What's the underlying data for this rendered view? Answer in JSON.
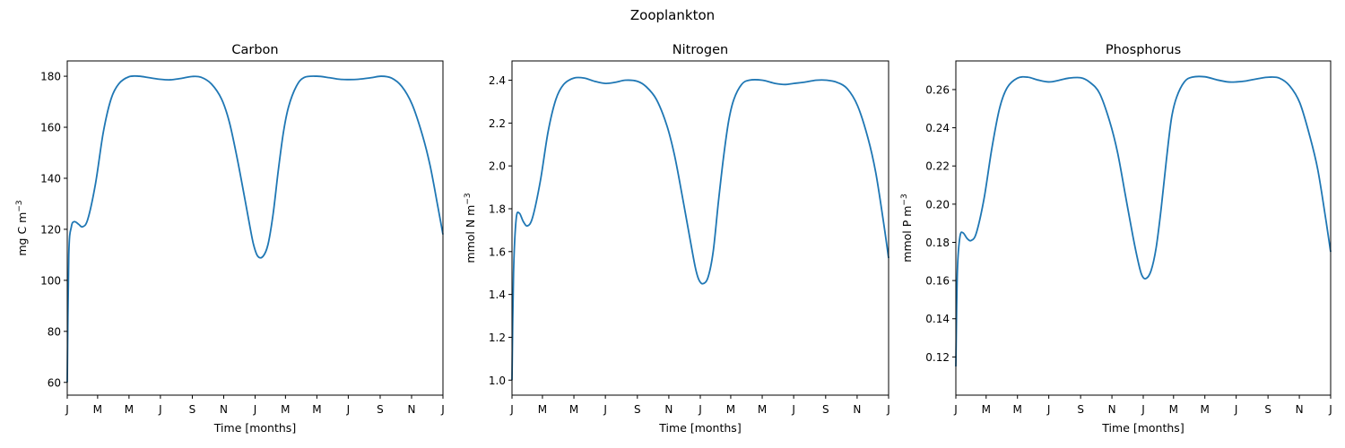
{
  "figure": {
    "suptitle": "Zooplankton"
  },
  "line_color": "#1f77b4",
  "chart_data": [
    {
      "type": "line",
      "title": "Carbon",
      "xlabel": "Time [months]",
      "ylabel": "mg C m",
      "ylabel_sup": "−3",
      "xtick_labels": [
        "J",
        "M",
        "M",
        "J",
        "S",
        "N",
        "J",
        "M",
        "M",
        "J",
        "S",
        "N",
        "J"
      ],
      "xtick_values": [
        0,
        59,
        120,
        181,
        243,
        304,
        365,
        424,
        485,
        546,
        608,
        669,
        730
      ],
      "xlim": [
        0,
        730
      ],
      "ylim": [
        55,
        186
      ],
      "yticks": [
        60,
        80,
        100,
        120,
        140,
        160,
        180
      ],
      "ytick_labels": [
        "60",
        "80",
        "100",
        "120",
        "140",
        "160",
        "180"
      ],
      "series": [
        {
          "x": [
            0,
            3,
            8,
            14,
            22,
            30,
            40,
            55,
            70,
            85,
            100,
            120,
            140,
            160,
            181,
            200,
            220,
            243,
            260,
            280,
            300,
            315,
            330,
            345,
            355,
            362,
            370,
            380,
            390,
            400,
            410,
            420,
            430,
            445,
            460,
            485,
            510,
            530,
            546,
            565,
            590,
            610,
            630,
            650,
            670,
            690,
            705,
            720,
            730
          ],
          "y": [
            60,
            110,
            121,
            123,
            122,
            121,
            124,
            138,
            158,
            171,
            177,
            179.8,
            180,
            179.4,
            178.8,
            178.6,
            179.1,
            179.9,
            179.6,
            177,
            171,
            162,
            148,
            132,
            121,
            114,
            109.5,
            109.3,
            114,
            126,
            143,
            158,
            168,
            176,
            179.5,
            180,
            179.4,
            178.8,
            178.7,
            178.8,
            179.4,
            180,
            179.3,
            176,
            169,
            157,
            145,
            129,
            118
          ]
        }
      ]
    },
    {
      "type": "line",
      "title": "Nitrogen",
      "xlabel": "Time [months]",
      "ylabel": "mmol N m",
      "ylabel_sup": "−3",
      "xtick_labels": [
        "J",
        "M",
        "M",
        "J",
        "S",
        "N",
        "J",
        "M",
        "M",
        "J",
        "S",
        "N",
        "J"
      ],
      "xtick_values": [
        0,
        59,
        120,
        181,
        243,
        304,
        365,
        424,
        485,
        546,
        608,
        669,
        730
      ],
      "xlim": [
        0,
        730
      ],
      "ylim": [
        0.93,
        2.49
      ],
      "yticks": [
        1.0,
        1.2,
        1.4,
        1.6,
        1.8,
        2.0,
        2.2,
        2.4
      ],
      "ytick_labels": [
        "1.0",
        "1.2",
        "1.4",
        "1.6",
        "1.8",
        "2.0",
        "2.2",
        "2.4"
      ],
      "series": [
        {
          "x": [
            0,
            3,
            8,
            14,
            22,
            30,
            40,
            55,
            70,
            85,
            100,
            120,
            140,
            160,
            181,
            200,
            220,
            243,
            260,
            280,
            300,
            315,
            330,
            345,
            355,
            362,
            370,
            380,
            390,
            400,
            410,
            420,
            430,
            445,
            460,
            485,
            510,
            530,
            546,
            565,
            590,
            610,
            630,
            650,
            670,
            690,
            705,
            720,
            730
          ],
          "y": [
            1.0,
            1.5,
            1.75,
            1.78,
            1.74,
            1.72,
            1.76,
            1.93,
            2.16,
            2.31,
            2.38,
            2.41,
            2.41,
            2.395,
            2.385,
            2.39,
            2.4,
            2.395,
            2.37,
            2.31,
            2.19,
            2.05,
            1.86,
            1.66,
            1.53,
            1.47,
            1.45,
            1.48,
            1.6,
            1.83,
            2.04,
            2.21,
            2.31,
            2.38,
            2.4,
            2.4,
            2.385,
            2.38,
            2.385,
            2.39,
            2.4,
            2.4,
            2.39,
            2.36,
            2.28,
            2.13,
            1.97,
            1.74,
            1.57
          ]
        }
      ]
    },
    {
      "type": "line",
      "title": "Phosphorus",
      "xlabel": "Time [months]",
      "ylabel": "mmol P m",
      "ylabel_sup": "−3",
      "xtick_labels": [
        "J",
        "M",
        "M",
        "J",
        "S",
        "N",
        "J",
        "M",
        "M",
        "J",
        "S",
        "N",
        "J"
      ],
      "xtick_values": [
        0,
        59,
        120,
        181,
        243,
        304,
        365,
        424,
        485,
        546,
        608,
        669,
        730
      ],
      "xlim": [
        0,
        730
      ],
      "ylim": [
        0.1,
        0.275
      ],
      "yticks": [
        0.12,
        0.14,
        0.16,
        0.18,
        0.2,
        0.22,
        0.24,
        0.26
      ],
      "ytick_labels": [
        "0.12",
        "0.14",
        "0.16",
        "0.18",
        "0.20",
        "0.22",
        "0.24",
        "0.26"
      ],
      "series": [
        {
          "x": [
            0,
            3,
            8,
            14,
            22,
            30,
            40,
            55,
            70,
            85,
            100,
            120,
            140,
            160,
            181,
            200,
            220,
            243,
            260,
            280,
            300,
            315,
            330,
            345,
            355,
            362,
            370,
            380,
            390,
            400,
            410,
            420,
            430,
            445,
            460,
            485,
            510,
            530,
            546,
            565,
            590,
            610,
            630,
            650,
            670,
            690,
            705,
            720,
            730
          ],
          "y": [
            0.115,
            0.165,
            0.183,
            0.185,
            0.182,
            0.181,
            0.185,
            0.203,
            0.229,
            0.25,
            0.261,
            0.266,
            0.2665,
            0.265,
            0.264,
            0.2648,
            0.266,
            0.2662,
            0.264,
            0.258,
            0.243,
            0.227,
            0.205,
            0.183,
            0.17,
            0.163,
            0.161,
            0.165,
            0.177,
            0.198,
            0.223,
            0.245,
            0.256,
            0.264,
            0.2665,
            0.2667,
            0.265,
            0.264,
            0.264,
            0.2645,
            0.2658,
            0.2665,
            0.266,
            0.262,
            0.253,
            0.235,
            0.218,
            0.193,
            0.175
          ]
        }
      ]
    }
  ]
}
